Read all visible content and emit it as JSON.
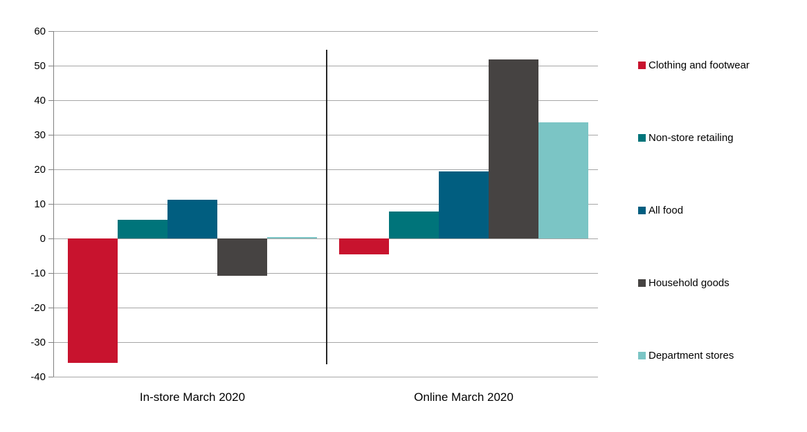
{
  "chart_data": {
    "type": "bar",
    "categories": [
      "In-store March 2020",
      "Online March 2020"
    ],
    "series": [
      {
        "name": "Clothing and footwear",
        "color": "#C8132E",
        "values": [
          -36.0,
          -4.5
        ]
      },
      {
        "name": "Non-store retailing",
        "color": "#00747A",
        "values": [
          5.5,
          7.8
        ]
      },
      {
        "name": "All food",
        "color": "#015E80",
        "values": [
          11.2,
          19.5
        ]
      },
      {
        "name": "Household goods",
        "color": "#464342",
        "values": [
          -10.8,
          51.8
        ]
      },
      {
        "name": "Department stores",
        "color": "#7BC5C5",
        "values": [
          0.5,
          33.6
        ]
      }
    ],
    "title": "",
    "xlabel": "",
    "ylabel": "",
    "ylim": [
      -40,
      60
    ],
    "ytick_step": 10,
    "yticks": [
      60,
      50,
      40,
      30,
      20,
      10,
      0,
      -10,
      -20,
      -30,
      -40
    ],
    "grid": true,
    "legend_position": "right",
    "group_divider": true,
    "style_colors": {
      "gridline": "#A6A6A6",
      "axis_line": "#808080",
      "divider_line": "#262626",
      "text": "#000000"
    }
  }
}
